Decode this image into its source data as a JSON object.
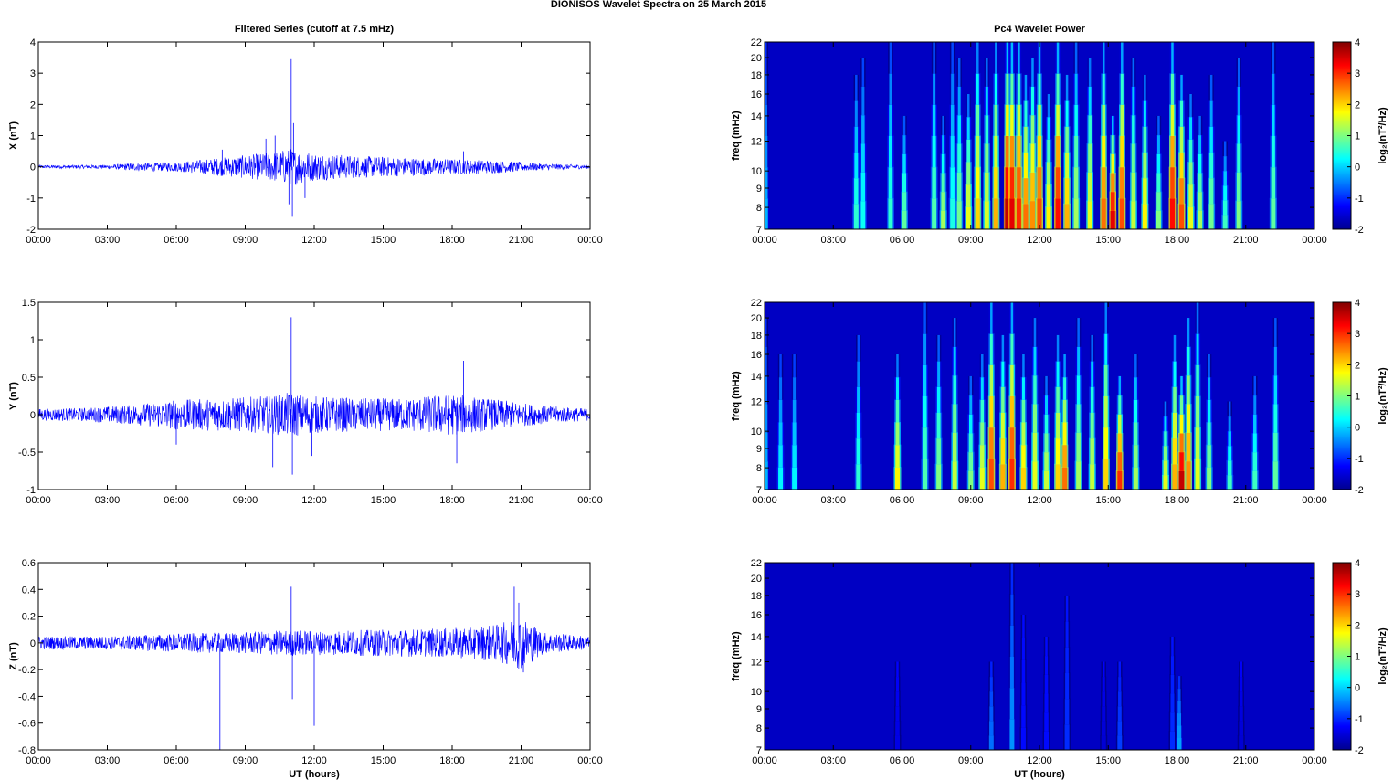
{
  "figure": {
    "title": "DIONISOS Wavelet Spectra on 25 March     2015",
    "left_title": "Filtered Series (cutoff at 7.5 mHz)",
    "right_title": "Pc4 Wavelet Power",
    "xlabel": "UT (hours)"
  },
  "chart_data": [
    {
      "type": "line",
      "name": "filtered-x",
      "ylabel": "X (nT)",
      "ylim": [
        -2,
        4
      ],
      "yticks": [
        "-2",
        "-1",
        "0",
        "1",
        "2",
        "3",
        "4"
      ],
      "xticks": [
        "00:00",
        "03:00",
        "06:00",
        "09:00",
        "12:00",
        "15:00",
        "18:00",
        "21:00",
        "00:00"
      ],
      "xlim_hours": [
        0,
        24
      ],
      "color": "#0000ff",
      "envelope": [
        [
          0,
          0.05
        ],
        [
          3,
          0.06
        ],
        [
          4,
          0.12
        ],
        [
          6,
          0.15
        ],
        [
          8,
          0.3
        ],
        [
          10,
          0.45
        ],
        [
          11,
          0.6
        ],
        [
          12,
          0.45
        ],
        [
          14,
          0.35
        ],
        [
          16,
          0.3
        ],
        [
          18,
          0.25
        ],
        [
          20,
          0.2
        ],
        [
          22,
          0.1
        ],
        [
          24,
          0.06
        ]
      ],
      "spikes": [
        [
          11.0,
          3.45
        ],
        [
          11.05,
          -1.6
        ],
        [
          11.1,
          1.4
        ],
        [
          10.3,
          1.0
        ],
        [
          10.9,
          -1.2
        ],
        [
          9.9,
          0.9
        ],
        [
          11.6,
          -1.0
        ],
        [
          8.0,
          0.55
        ],
        [
          18.5,
          0.5
        ]
      ]
    },
    {
      "type": "line",
      "name": "filtered-y",
      "ylabel": "Y (nT)",
      "ylim": [
        -1,
        1.5
      ],
      "yticks": [
        "-1",
        "-0.5",
        "0",
        "0.5",
        "1",
        "1.5"
      ],
      "xticks": [
        "00:00",
        "03:00",
        "06:00",
        "09:00",
        "12:00",
        "15:00",
        "18:00",
        "21:00",
        "00:00"
      ],
      "xlim_hours": [
        0,
        24
      ],
      "color": "#0000ff",
      "envelope": [
        [
          0,
          0.08
        ],
        [
          2,
          0.09
        ],
        [
          4,
          0.13
        ],
        [
          6,
          0.2
        ],
        [
          8,
          0.22
        ],
        [
          10,
          0.25
        ],
        [
          11,
          0.3
        ],
        [
          12,
          0.25
        ],
        [
          14,
          0.22
        ],
        [
          16,
          0.22
        ],
        [
          18,
          0.28
        ],
        [
          20,
          0.2
        ],
        [
          22,
          0.12
        ],
        [
          24,
          0.08
        ]
      ],
      "spikes": [
        [
          11.0,
          1.3
        ],
        [
          11.05,
          -0.8
        ],
        [
          10.2,
          -0.7
        ],
        [
          18.5,
          0.72
        ],
        [
          18.2,
          -0.65
        ],
        [
          11.9,
          -0.55
        ],
        [
          6.0,
          -0.4
        ]
      ]
    },
    {
      "type": "line",
      "name": "filtered-z",
      "ylabel": "Z (nT)",
      "ylim": [
        -0.8,
        0.6
      ],
      "yticks": [
        "-0.8",
        "-0.6",
        "-0.4",
        "-0.2",
        "0",
        "0.2",
        "0.4",
        "0.6"
      ],
      "xticks": [
        "00:00",
        "03:00",
        "06:00",
        "09:00",
        "12:00",
        "15:00",
        "18:00",
        "21:00",
        "00:00"
      ],
      "xlim_hours": [
        0,
        24
      ],
      "color": "#0000ff",
      "envelope": [
        [
          0,
          0.05
        ],
        [
          3,
          0.05
        ],
        [
          6,
          0.07
        ],
        [
          9,
          0.08
        ],
        [
          11,
          0.1
        ],
        [
          12,
          0.09
        ],
        [
          15,
          0.1
        ],
        [
          18,
          0.11
        ],
        [
          20,
          0.14
        ],
        [
          21,
          0.2
        ],
        [
          22,
          0.08
        ],
        [
          24,
          0.05
        ]
      ],
      "spikes": [
        [
          7.9,
          -0.8
        ],
        [
          11.0,
          0.42
        ],
        [
          11.05,
          -0.42
        ],
        [
          12.0,
          -0.62
        ],
        [
          20.7,
          0.42
        ],
        [
          20.9,
          0.3
        ],
        [
          21.1,
          -0.22
        ]
      ]
    },
    {
      "type": "heatmap",
      "name": "wavelet-x",
      "ylabel": "freq (mHz)",
      "yticks": [
        "7",
        "8",
        "9",
        "10",
        "12",
        "14",
        "16",
        "18",
        "20",
        "22"
      ],
      "ytick_values": [
        7,
        8,
        9,
        10,
        12,
        14,
        16,
        18,
        20,
        22
      ],
      "ylim": [
        7,
        22
      ],
      "xticks": [
        "00:00",
        "03:00",
        "06:00",
        "09:00",
        "12:00",
        "15:00",
        "18:00",
        "21:00",
        "00:00"
      ],
      "xlim_hours": [
        0,
        24
      ],
      "clim": [
        -2,
        4
      ],
      "colorbar_ticks": [
        "4",
        "3",
        "2",
        "1",
        "0",
        "-1",
        "-2"
      ],
      "colorbar_label": "log₂(nT²/Hz)",
      "streaks": [
        [
          0.05,
          -0.2,
          22
        ],
        [
          4.0,
          0.5,
          18
        ],
        [
          4.3,
          0.3,
          20
        ],
        [
          5.5,
          0.5,
          22
        ],
        [
          6.1,
          0.8,
          14
        ],
        [
          7.4,
          0.7,
          22
        ],
        [
          7.8,
          1.2,
          14
        ],
        [
          8.2,
          0.4,
          22
        ],
        [
          8.5,
          0.9,
          20
        ],
        [
          8.9,
          1.6,
          16
        ],
        [
          9.3,
          2.0,
          22
        ],
        [
          9.7,
          1.5,
          20
        ],
        [
          10.1,
          2.2,
          22
        ],
        [
          10.6,
          3.6,
          22
        ],
        [
          10.8,
          3.4,
          22
        ],
        [
          11.1,
          3.0,
          22
        ],
        [
          11.4,
          2.6,
          18
        ],
        [
          11.7,
          2.4,
          20
        ],
        [
          12.0,
          2.8,
          22
        ],
        [
          12.4,
          1.8,
          16
        ],
        [
          12.8,
          3.2,
          22
        ],
        [
          13.2,
          2.2,
          18
        ],
        [
          13.6,
          1.2,
          22
        ],
        [
          14.2,
          1.6,
          20
        ],
        [
          14.8,
          2.6,
          22
        ],
        [
          15.2,
          3.4,
          14
        ],
        [
          15.6,
          2.8,
          22
        ],
        [
          16.1,
          1.4,
          20
        ],
        [
          16.6,
          1.8,
          18
        ],
        [
          17.2,
          1.0,
          14
        ],
        [
          17.8,
          3.2,
          22
        ],
        [
          18.2,
          2.8,
          18
        ],
        [
          18.6,
          1.6,
          16
        ],
        [
          19.0,
          1.2,
          14
        ],
        [
          19.5,
          0.9,
          18
        ],
        [
          20.1,
          0.6,
          12
        ],
        [
          20.7,
          1.0,
          20
        ],
        [
          22.2,
          0.8,
          22
        ]
      ]
    },
    {
      "type": "heatmap",
      "name": "wavelet-y",
      "ylabel": "freq (mHz)",
      "yticks": [
        "7",
        "8",
        "9",
        "10",
        "12",
        "14",
        "16",
        "18",
        "20",
        "22"
      ],
      "ytick_values": [
        7,
        8,
        9,
        10,
        12,
        14,
        16,
        18,
        20,
        22
      ],
      "ylim": [
        7,
        22
      ],
      "xticks": [
        "00:00",
        "03:00",
        "06:00",
        "09:00",
        "12:00",
        "15:00",
        "18:00",
        "21:00",
        "00:00"
      ],
      "xlim_hours": [
        0,
        24
      ],
      "clim": [
        -2,
        4
      ],
      "colorbar_ticks": [
        "4",
        "3",
        "2",
        "1",
        "0",
        "-1",
        "-2"
      ],
      "colorbar_label": "log₂(nT²/Hz)",
      "streaks": [
        [
          0.05,
          -0.2,
          20
        ],
        [
          0.7,
          0.2,
          16
        ],
        [
          1.3,
          0.2,
          16
        ],
        [
          4.1,
          0.5,
          18
        ],
        [
          5.8,
          1.8,
          16
        ],
        [
          7.0,
          0.7,
          22
        ],
        [
          7.6,
          1.0,
          18
        ],
        [
          8.3,
          1.4,
          20
        ],
        [
          9.0,
          1.0,
          14
        ],
        [
          9.5,
          1.6,
          16
        ],
        [
          9.9,
          2.8,
          22
        ],
        [
          10.4,
          2.2,
          18
        ],
        [
          10.8,
          3.0,
          22
        ],
        [
          11.3,
          2.0,
          16
        ],
        [
          11.8,
          1.6,
          20
        ],
        [
          12.3,
          1.4,
          14
        ],
        [
          12.8,
          2.0,
          18
        ],
        [
          13.1,
          2.6,
          16
        ],
        [
          13.7,
          1.2,
          20
        ],
        [
          14.3,
          1.4,
          18
        ],
        [
          14.9,
          2.0,
          22
        ],
        [
          15.5,
          3.0,
          14
        ],
        [
          16.2,
          1.2,
          16
        ],
        [
          17.5,
          1.6,
          12
        ],
        [
          17.9,
          2.2,
          18
        ],
        [
          18.2,
          3.6,
          14
        ],
        [
          18.5,
          2.4,
          20
        ],
        [
          18.9,
          1.6,
          22
        ],
        [
          19.4,
          1.0,
          16
        ],
        [
          20.3,
          0.6,
          12
        ],
        [
          21.4,
          0.6,
          14
        ],
        [
          22.3,
          0.8,
          20
        ]
      ]
    },
    {
      "type": "heatmap",
      "name": "wavelet-z",
      "ylabel": "freq (mHz)",
      "yticks": [
        "7",
        "8",
        "9",
        "10",
        "12",
        "14",
        "16",
        "18",
        "20",
        "22"
      ],
      "ytick_values": [
        7,
        8,
        9,
        10,
        12,
        14,
        16,
        18,
        20,
        22
      ],
      "ylim": [
        7,
        22
      ],
      "xticks": [
        "00:00",
        "03:00",
        "06:00",
        "09:00",
        "12:00",
        "15:00",
        "18:00",
        "21:00",
        "00:00"
      ],
      "xlim_hours": [
        0,
        24
      ],
      "clim": [
        -2,
        4
      ],
      "colorbar_ticks": [
        "4",
        "3",
        "2",
        "1",
        "0",
        "-1",
        "-2"
      ],
      "colorbar_label": "log₂(nT²/Hz)",
      "streaks": [
        [
          5.8,
          -1.4,
          12
        ],
        [
          9.9,
          -0.6,
          12
        ],
        [
          10.8,
          -0.4,
          22
        ],
        [
          11.3,
          -1.2,
          16
        ],
        [
          12.3,
          -1.2,
          14
        ],
        [
          13.2,
          -1.0,
          18
        ],
        [
          14.8,
          -1.5,
          12
        ],
        [
          15.5,
          -0.9,
          12
        ],
        [
          17.8,
          -1.0,
          14
        ],
        [
          18.1,
          -0.3,
          11
        ],
        [
          20.8,
          -1.5,
          12
        ]
      ]
    }
  ]
}
